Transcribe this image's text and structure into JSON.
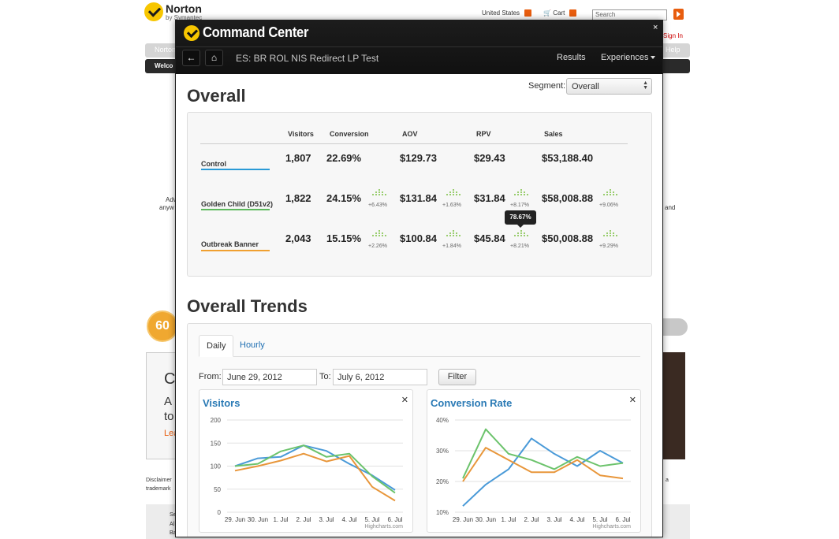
{
  "background": {
    "brand": "Norton",
    "brand_sub": "by Symantec",
    "country": "United States",
    "cart": "Cart",
    "search_placeholder": "Search",
    "signin": "Sign In",
    "nav_left": "Norton",
    "nav_right": "Help",
    "welcome": "Welco",
    "left_text_1": "Adv",
    "left_text_2": "anyw",
    "right_text": "and",
    "badge_text": "60",
    "panel_big": "C",
    "panel_line1": "A",
    "panel_line2": "to",
    "panel_link": "Lea",
    "disclaimer_1": "Disclaimer",
    "disclaimer_2": "trademark",
    "disclaimer_right": "a",
    "footer_1": "Se",
    "footer_2": "Al",
    "footer_3": "Ba"
  },
  "modal": {
    "title": "Command Center",
    "close": "×",
    "back_icon": "←",
    "home_icon": "⌂",
    "test_name": "ES: BR ROL NIS Redirect LP Test",
    "nav_results": "Results",
    "nav_experiences": "Experiences"
  },
  "overall": {
    "heading": "Overall",
    "segment_label": "Segment:",
    "segment_value": "Overall",
    "columns": [
      "Visitors",
      "Conversion",
      "AOV",
      "RPV",
      "Sales"
    ],
    "rows": [
      {
        "label": "Control",
        "color": "#2a9ad6",
        "values": [
          "1,807",
          "22.69%",
          "$129.73",
          "$29.43",
          "$53,188.40"
        ],
        "deltas": [
          "",
          "",
          "",
          ""
        ]
      },
      {
        "label": "Golden Child (D51v2)",
        "color": "#5cb85c",
        "values": [
          "1,822",
          "24.15%",
          "$131.84",
          "$31.84",
          "$58,008.88"
        ],
        "deltas": [
          "+6.43%",
          "+1.63%",
          "+8.17%",
          "+9.06%"
        ]
      },
      {
        "label": "Outbreak Banner",
        "color": "#f0a030",
        "values": [
          "2,043",
          "15.15%",
          "$100.84",
          "$45.84",
          "$50,008.88"
        ],
        "deltas": [
          "+2.26%",
          "+1.84%",
          "+8.21%",
          "+9.29%"
        ]
      }
    ],
    "tooltip": "78.67%"
  },
  "trends": {
    "heading": "Overall Trends",
    "tab_daily": "Daily",
    "tab_hourly": "Hourly",
    "from_label": "From:",
    "from_value": "June 29, 2012",
    "to_label": "To:",
    "to_value": "July 6, 2012",
    "filter_label": "Filter",
    "credit": "Highcharts.com"
  },
  "colors": {
    "blue": "#4a9ad8",
    "green": "#6cc36c",
    "orange": "#e8963a",
    "title_blue": "#2a7ab5"
  },
  "chart_data": [
    {
      "type": "line",
      "title": "Visitors",
      "categories": [
        "29. Jun",
        "30. Jun",
        "1. Jul",
        "2. Jul",
        "3. Jul",
        "4. Jul",
        "5. Jul",
        "6. Jul"
      ],
      "ylim": [
        0,
        200
      ],
      "yticks": [
        "0",
        "50",
        "100",
        "150",
        "200"
      ],
      "series": [
        {
          "color": "#4a9ad8",
          "values": [
            100,
            117,
            120,
            145,
            133,
            105,
            80,
            48
          ]
        },
        {
          "color": "#6cc36c",
          "values": [
            100,
            105,
            132,
            145,
            120,
            127,
            78,
            42
          ]
        },
        {
          "color": "#e8963a",
          "values": [
            90,
            100,
            112,
            127,
            110,
            122,
            55,
            25
          ]
        }
      ]
    },
    {
      "type": "line",
      "title": "Conversion Rate",
      "categories": [
        "29. Jun",
        "30. Jun",
        "1. Jul",
        "2. Jul",
        "3. Jul",
        "4. Jul",
        "5. Jul",
        "6. Jul"
      ],
      "ylim": [
        10,
        40
      ],
      "yticks": [
        "10%",
        "20%",
        "30%",
        "40%"
      ],
      "series": [
        {
          "color": "#4a9ad8",
          "values": [
            12,
            19,
            24,
            34,
            29,
            25,
            30,
            26
          ]
        },
        {
          "color": "#6cc36c",
          "values": [
            21,
            37,
            29,
            27,
            24,
            28,
            25,
            26
          ]
        },
        {
          "color": "#e8963a",
          "values": [
            20,
            31,
            27,
            23,
            23,
            27,
            22,
            21
          ]
        }
      ]
    }
  ]
}
